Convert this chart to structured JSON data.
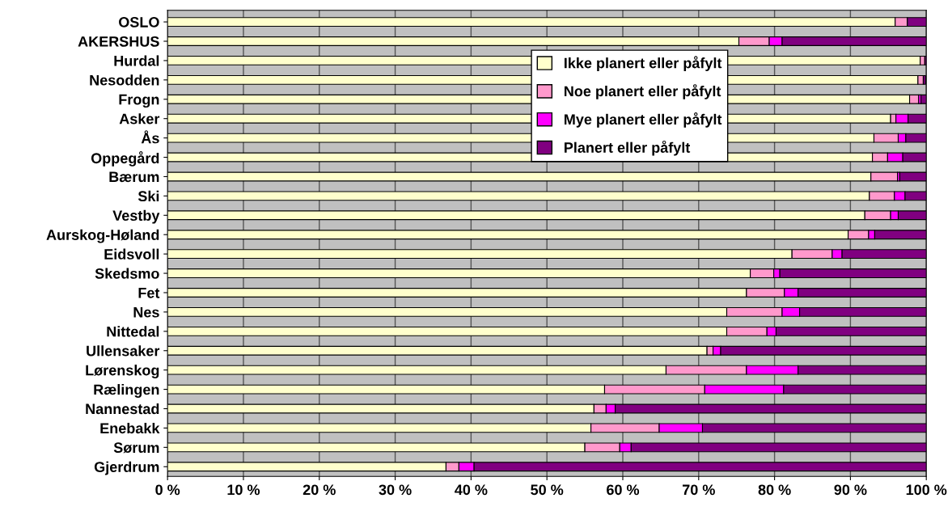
{
  "chart_data": {
    "type": "bar",
    "orientation": "horizontal",
    "stacked": true,
    "categories": [
      "OSLO",
      "AKERSHUS",
      "Hurdal",
      "Nesodden",
      "Frogn",
      "Asker",
      "Ås",
      "Oppegård",
      "Bærum",
      "Ski",
      "Vestby",
      "Aurskog-Høland",
      "Eidsvoll",
      "Skedsmo",
      "Fet",
      "Nes",
      "Nittedal",
      "Ullensaker",
      "Lørenskog",
      "Rælingen",
      "Nannestad",
      "Enebakk",
      "Sørum",
      "Gjerdrum"
    ],
    "series": [
      {
        "name": "Ikke planert eller påfylt",
        "color": "#ffffcc",
        "values": [
          95.9,
          75.3,
          99.2,
          98.9,
          97.8,
          95.3,
          93.1,
          92.9,
          92.7,
          92.5,
          91.9,
          89.7,
          82.3,
          76.8,
          76.3,
          73.7,
          73.7,
          71.1,
          65.7,
          57.6,
          56.2,
          55.8,
          55.0,
          36.7
        ]
      },
      {
        "name": "Noe planert eller påfylt",
        "color": "#ff99cc",
        "values": [
          1.6,
          4.0,
          0.6,
          0.7,
          1.2,
          0.7,
          3.2,
          2.0,
          3.5,
          3.3,
          3.4,
          2.7,
          5.3,
          3.1,
          5.0,
          7.3,
          5.3,
          0.8,
          10.6,
          13.2,
          1.6,
          9.0,
          4.6,
          1.7
        ]
      },
      {
        "name": "Mye planert eller påfylt",
        "color": "#ff00ff",
        "values": [
          0,
          1.7,
          0,
          null,
          0.3,
          1.6,
          1.0,
          2.0,
          0.3,
          1.4,
          1.0,
          0.8,
          1.3,
          0.8,
          1.8,
          2.3,
          1.2,
          1.0,
          6.8,
          10.4,
          1.2,
          5.7,
          1.5,
          2.0
        ]
      },
      {
        "name": "Planert eller påfylt",
        "color": "#800080",
        "values": [
          2.5,
          19.0,
          0.2,
          0.3,
          0.7,
          2.4,
          2.7,
          3.1,
          3.5,
          2.8,
          3.7,
          6.8,
          11.1,
          19.3,
          16.9,
          16.7,
          19.8,
          27.1,
          16.9,
          18.8,
          41.0,
          29.5,
          38.9,
          59.6
        ]
      }
    ],
    "xlim": [
      0,
      100
    ],
    "xticks": [
      {
        "value": 0,
        "label": "0 %"
      },
      {
        "value": 10,
        "label": "10 %"
      },
      {
        "value": 20,
        "label": "20 %"
      },
      {
        "value": 30,
        "label": "30 %"
      },
      {
        "value": 40,
        "label": "40 %"
      },
      {
        "value": 50,
        "label": "50 %"
      },
      {
        "value": 60,
        "label": "60 %"
      },
      {
        "value": 70,
        "label": "70 %"
      },
      {
        "value": 80,
        "label": "80 %"
      },
      {
        "value": 90,
        "label": "90 %"
      },
      {
        "value": 100,
        "label": "100 %"
      }
    ],
    "grid": "x",
    "legend": "top right"
  }
}
